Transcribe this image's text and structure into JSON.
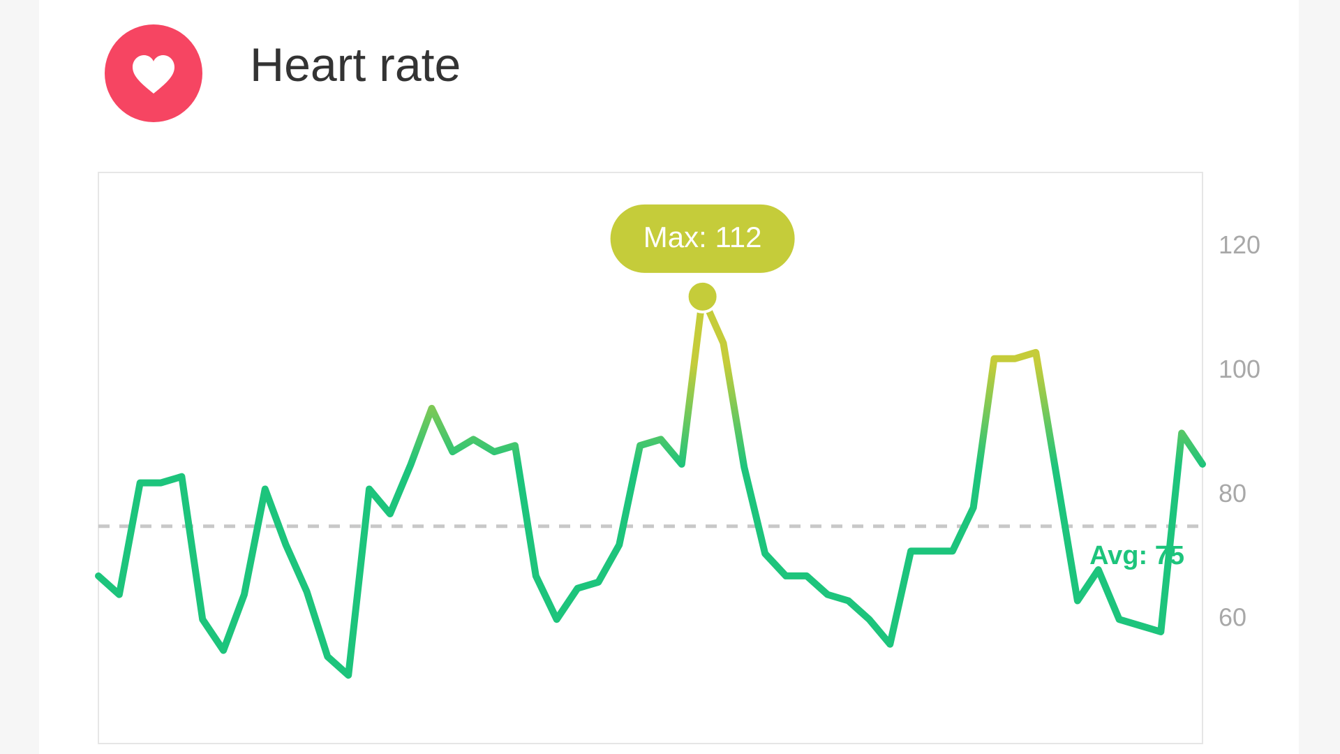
{
  "header": {
    "title": "Heart rate"
  },
  "chart_data": {
    "type": "line",
    "values": [
      67,
      64,
      82,
      82,
      83,
      60,
      55,
      64,
      81,
      72,
      64.5,
      54,
      51,
      81,
      77,
      85,
      94,
      87,
      89,
      87,
      88,
      67,
      60,
      65,
      66,
      72,
      88,
      89,
      85,
      112,
      104.5,
      84.5,
      70.6,
      67,
      67,
      64,
      63,
      60,
      56,
      71,
      71,
      71,
      78,
      102,
      102,
      103,
      83,
      63,
      68,
      60,
      59,
      58,
      90,
      85
    ],
    "color": "#1dc47c",
    "peak_color": "#c5cc3a",
    "ylim": [
      40,
      132
    ],
    "yticks": [
      60,
      80,
      100,
      120
    ],
    "annotations": {
      "max": {
        "value": 112,
        "label": "Max: 112",
        "index": 29
      },
      "avg": {
        "value": 75,
        "label": "Avg: 75"
      }
    }
  }
}
